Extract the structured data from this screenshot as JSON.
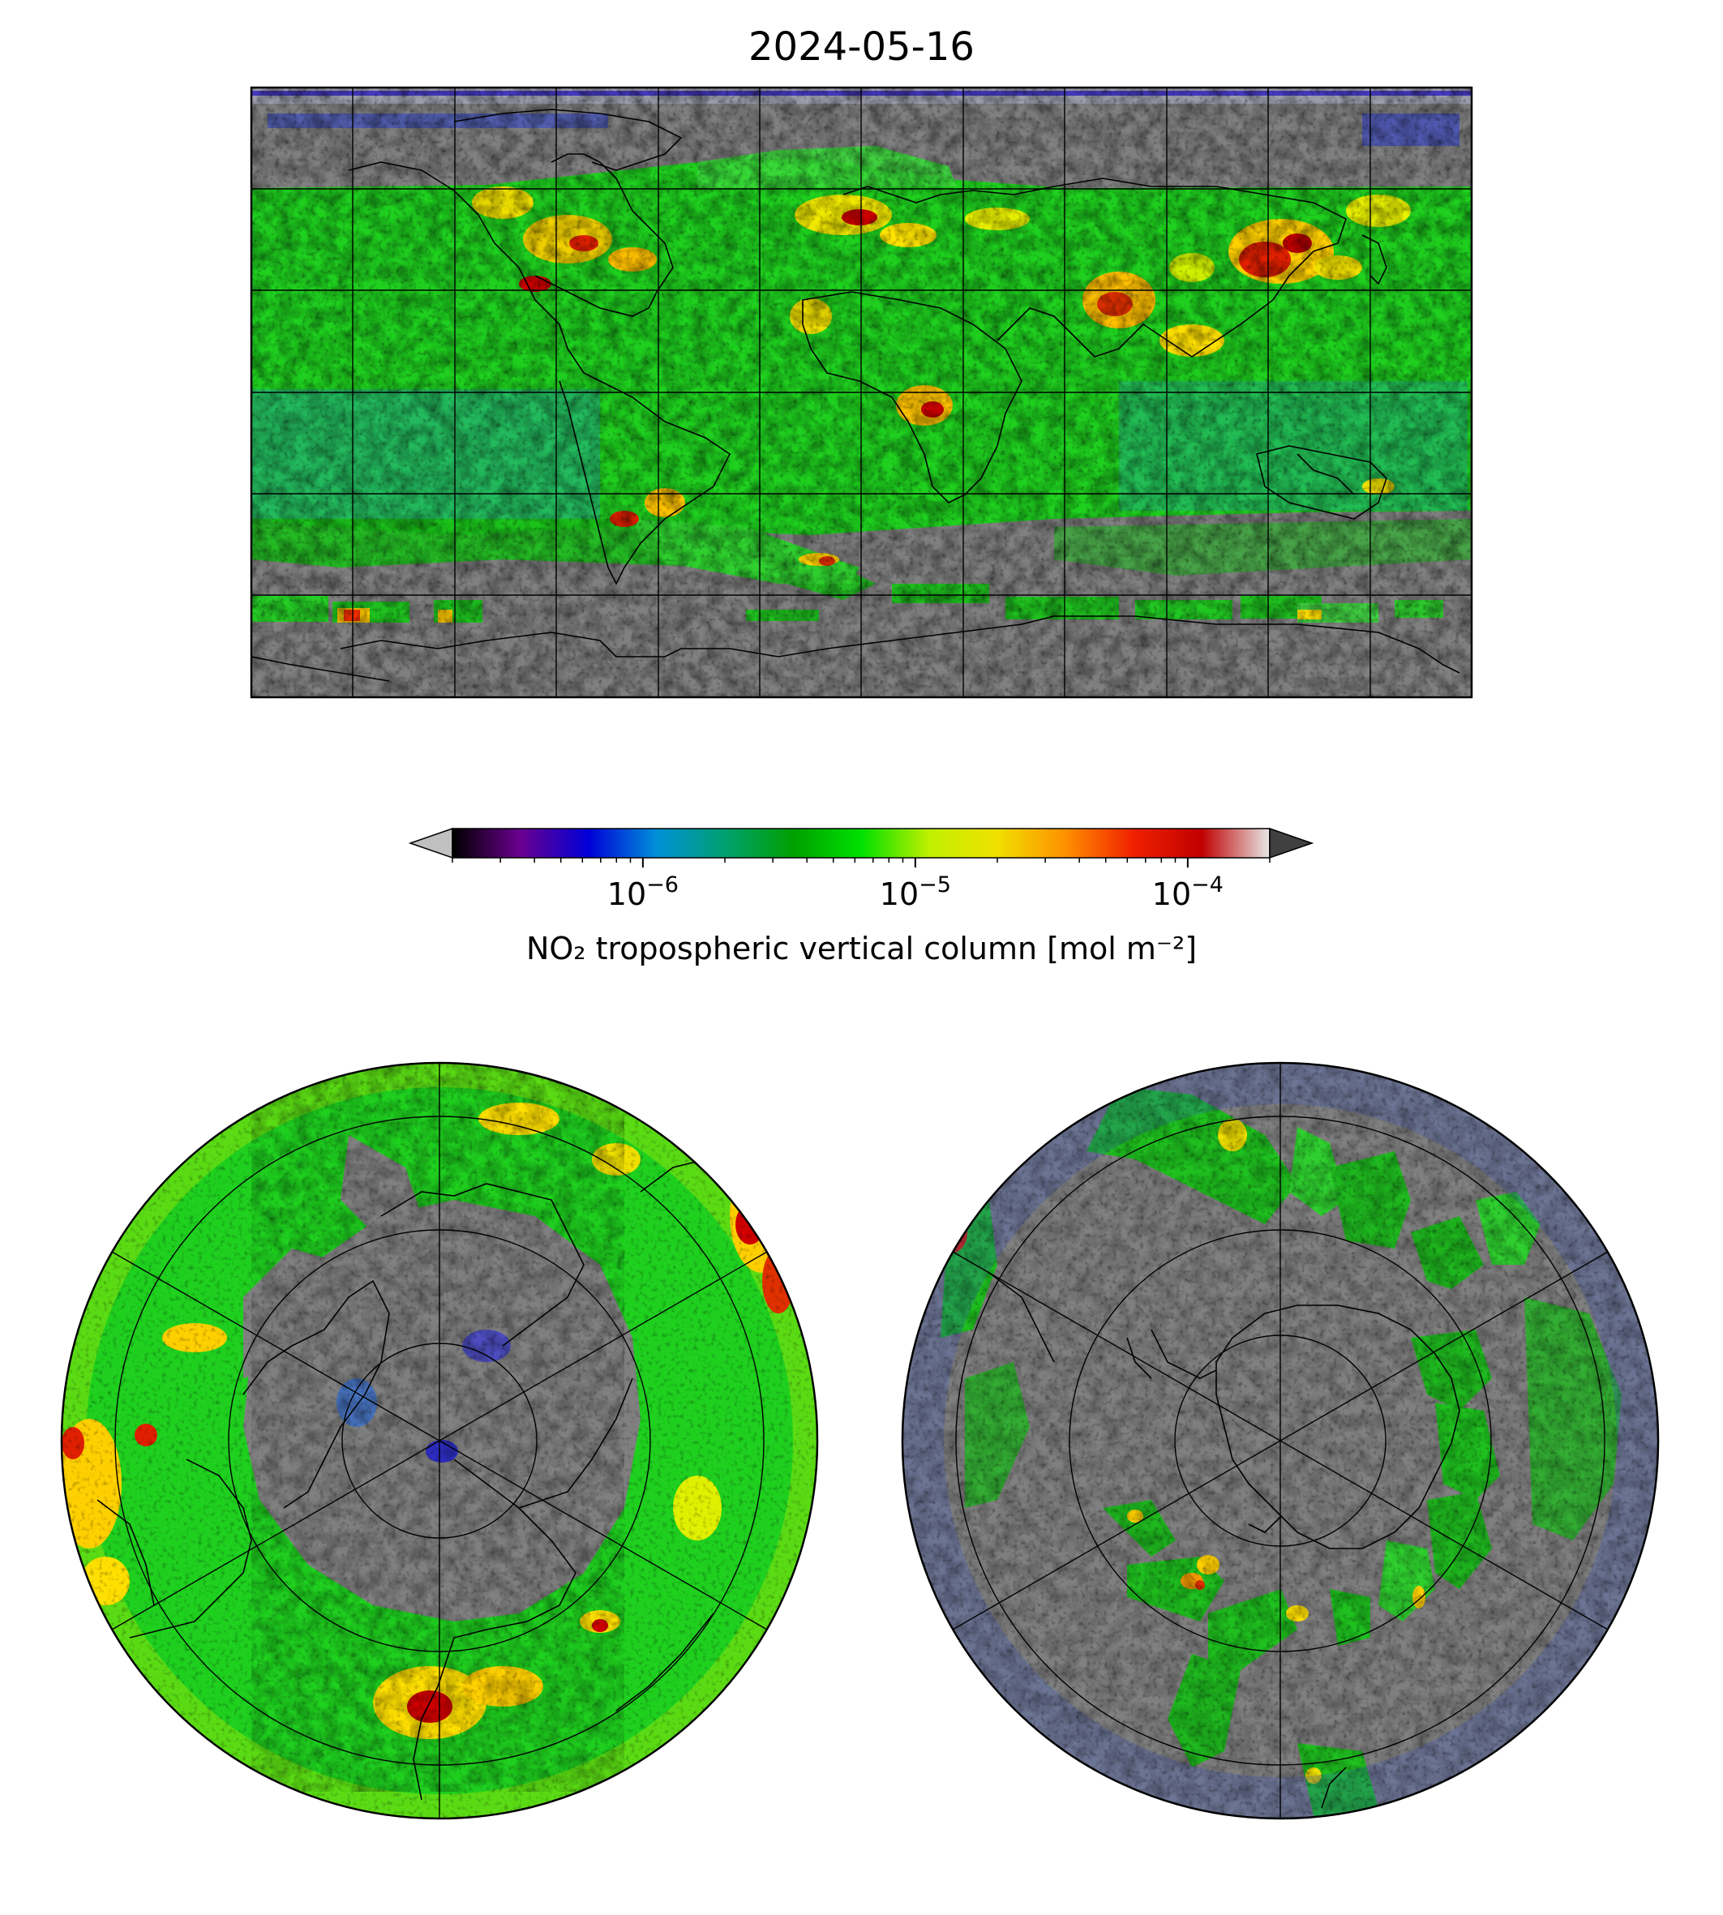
{
  "figure": {
    "title": "2024-05-16"
  },
  "colorbar": {
    "label": "NO₂ tropospheric vertical column [mol m⁻²]",
    "scale": "log",
    "range": [
      2e-07,
      0.0002
    ],
    "ticks": [
      {
        "value": 1e-06,
        "base": "10",
        "exp": "−6"
      },
      {
        "value": 1e-05,
        "base": "10",
        "exp": "−5"
      },
      {
        "value": 0.0001,
        "base": "10",
        "exp": "−4"
      }
    ],
    "extend": "both",
    "colors": [
      "#000000",
      "#6a008f",
      "#0000d8",
      "#0090d8",
      "#00a070",
      "#00a000",
      "#00e000",
      "#c0f000",
      "#f0e000",
      "#ff9000",
      "#f02000",
      "#c00000",
      "#e8e8e8"
    ],
    "under_color": "#c0c0c0",
    "over_color": "#404040"
  },
  "maps": {
    "global": {
      "projection": "plate-carree",
      "background": "#808080"
    },
    "north_polar": {
      "projection": "north-polar-stereographic",
      "background": "#808080"
    },
    "south_polar": {
      "projection": "south-polar-stereographic",
      "background": "#808080"
    }
  }
}
